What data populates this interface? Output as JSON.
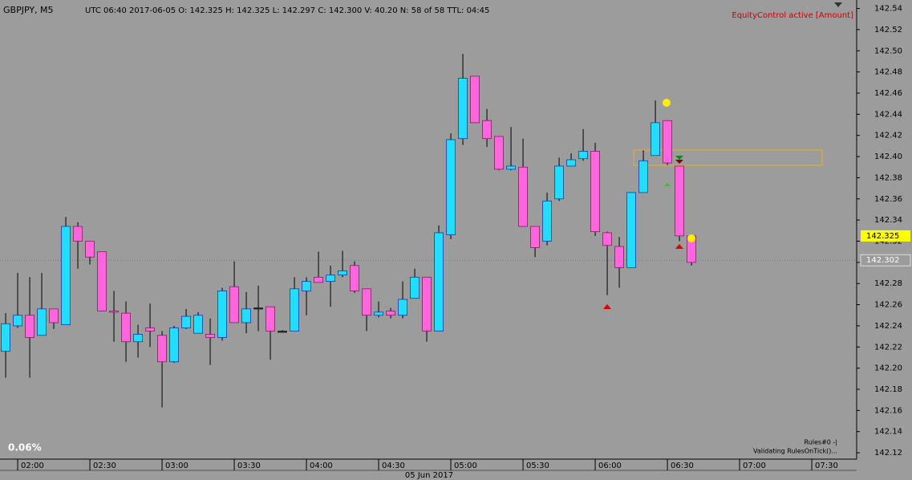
{
  "chart_data": {
    "type": "candlestick",
    "title": "GBPJPY, M5",
    "subtitle": "UTC 06:40 2017-06-05   O: 142.325   H: 142.325   L: 142.297   C: 142.300   V: 40.20   N: 58 of 58   TTL: 04:45",
    "status_text": "EquityControl active [Amount]",
    "percent_text": "0.06%",
    "rules_text": "Rules#0 -|",
    "validating_text": "Validating RulesOnTick()...",
    "date_label": "05 Jun 2017",
    "up_color": "#22ddff",
    "down_color": "#ff66dd",
    "open": [
      142.216,
      142.24,
      142.25,
      142.231,
      142.256,
      142.241,
      142.334,
      142.32,
      142.31,
      142.254,
      142.252,
      142.225,
      142.238,
      142.231,
      142.206,
      142.238,
      142.233,
      142.232,
      142.229,
      142.277,
      142.243,
      142.257,
      142.258,
      142.235,
      142.235,
      142.273,
      142.286,
      142.282,
      142.288,
      142.297,
      142.275,
      142.25,
      142.254,
      142.25,
      142.266,
      142.286,
      142.235,
      142.326,
      142.417,
      142.476,
      142.434,
      142.419,
      142.388,
      142.39,
      142.334,
      142.32,
      142.36,
      142.391,
      142.398,
      142.405,
      142.328,
      142.315,
      142.295,
      142.366,
      142.401,
      142.434,
      142.391,
      142.325
    ],
    "high": [
      142.252,
      142.29,
      142.286,
      142.29,
      142.256,
      142.343,
      142.338,
      142.32,
      142.31,
      142.273,
      142.263,
      142.241,
      142.261,
      142.235,
      142.24,
      142.256,
      142.253,
      142.247,
      142.276,
      142.301,
      142.272,
      142.278,
      142.258,
      142.236,
      142.286,
      142.286,
      142.31,
      142.297,
      142.311,
      142.301,
      142.275,
      142.263,
      142.257,
      142.282,
      142.294,
      142.286,
      142.335,
      142.422,
      142.497,
      142.476,
      142.445,
      142.419,
      142.428,
      142.417,
      142.334,
      142.366,
      142.399,
      142.403,
      142.426,
      142.413,
      142.329,
      142.324,
      142.366,
      142.406,
      142.453,
      142.434,
      142.391,
      142.325
    ],
    "low": [
      142.191,
      142.238,
      142.191,
      142.231,
      142.237,
      142.241,
      142.294,
      142.298,
      142.254,
      142.225,
      142.206,
      142.21,
      142.22,
      142.163,
      142.205,
      142.237,
      142.233,
      142.203,
      142.226,
      142.243,
      142.233,
      142.235,
      142.208,
      142.234,
      142.235,
      142.25,
      142.281,
      142.258,
      142.286,
      142.271,
      142.235,
      142.248,
      142.247,
      142.247,
      142.266,
      142.225,
      142.235,
      142.322,
      142.411,
      142.432,
      142.409,
      142.387,
      142.387,
      142.334,
      142.305,
      142.316,
      142.358,
      142.391,
      142.396,
      142.325,
      142.269,
      142.276,
      142.295,
      142.366,
      142.401,
      142.392,
      142.32,
      142.297
    ],
    "close": [
      142.242,
      142.25,
      142.229,
      142.256,
      142.243,
      142.334,
      142.32,
      142.305,
      142.254,
      142.253,
      142.225,
      142.232,
      142.235,
      142.206,
      142.238,
      142.249,
      142.25,
      142.229,
      142.273,
      142.243,
      142.256,
      142.257,
      142.235,
      142.235,
      142.275,
      142.282,
      142.281,
      142.288,
      142.292,
      142.273,
      142.25,
      142.253,
      142.25,
      142.265,
      142.286,
      142.235,
      142.328,
      142.416,
      142.474,
      142.432,
      142.417,
      142.388,
      142.391,
      142.334,
      142.314,
      142.358,
      142.391,
      142.397,
      142.405,
      142.329,
      142.316,
      142.295,
      142.366,
      142.396,
      142.432,
      142.394,
      142.325,
      142.3
    ],
    "xlim": [
      -0.47,
      70.73
    ],
    "xticks": [
      {
        "value": 1,
        "label": "02:00"
      },
      {
        "value": 7,
        "label": "02:30"
      },
      {
        "value": 13,
        "label": "03:00"
      },
      {
        "value": 19,
        "label": "03:30"
      },
      {
        "value": 25,
        "label": "04:00"
      },
      {
        "value": 31,
        "label": "04:30"
      },
      {
        "value": 37,
        "label": "05:00"
      },
      {
        "value": 43,
        "label": "05:30"
      },
      {
        "value": 49,
        "label": "06:00"
      },
      {
        "value": 55,
        "label": "06:30"
      },
      {
        "value": 61,
        "label": "07:00"
      },
      {
        "value": 67,
        "label": "07:30"
      }
    ],
    "ylim": [
      142.114,
      142.548
    ],
    "yticks": [
      142.12,
      142.14,
      142.16,
      142.18,
      {
        "value": 142.2,
        "label": "142.20"
      },
      142.22,
      142.24,
      142.26,
      142.28,
      {
        "value": 142.3,
        "label": "142.30"
      },
      142.32,
      142.34,
      142.36,
      142.38,
      {
        "value": 142.4,
        "label": "142.40"
      },
      142.42,
      142.44,
      142.46,
      142.48,
      {
        "value": 142.5,
        "label": "142.50"
      },
      142.52,
      142.54
    ],
    "bid_label": 142.325,
    "last_label": 142.302
  }
}
